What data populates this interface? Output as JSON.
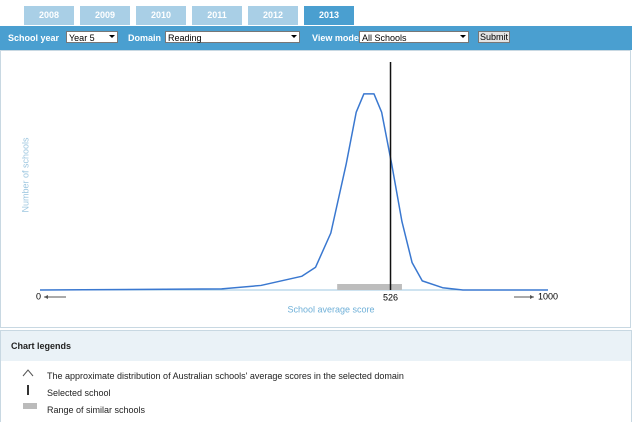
{
  "tabs": [
    "2008",
    "2009",
    "2010",
    "2011",
    "2012",
    "2013"
  ],
  "active_tab": 5,
  "toolbar": {
    "school_year_label": "School year",
    "school_year": "Year 5",
    "domain_label": "Domain",
    "domain": "Reading",
    "view_mode_label": "View mode",
    "view_mode": "All Schools",
    "submit": "Submit"
  },
  "chart_data": {
    "type": "line",
    "y_label": "Number of schools",
    "x_label": "School average score",
    "x_end_labels": [
      "0",
      "1000"
    ],
    "xlim": [
      250,
      650
    ],
    "ylim": [
      0,
      100
    ],
    "series": [
      {
        "name": "The approximate distribution of Australian schools' average scores in the selected domain",
        "color": "#3a78d0",
        "x": [
          250,
          393,
          424,
          456,
          467,
          479,
          491,
          499,
          505,
          513,
          519,
          527,
          535,
          543,
          551,
          567,
          583,
          650
        ],
        "values": [
          0,
          0.5,
          2,
          6,
          10,
          25,
          55,
          78,
          86,
          86,
          78,
          55,
          30,
          12,
          4,
          1,
          0,
          0
        ]
      }
    ],
    "selected_school": 526,
    "similar_range": [
      484,
      535
    ]
  },
  "legend": {
    "title": "Chart legends",
    "items": [
      "The approximate distribution of Australian schools' average scores in the selected domain",
      "Selected school",
      "Range of similar schools"
    ]
  }
}
